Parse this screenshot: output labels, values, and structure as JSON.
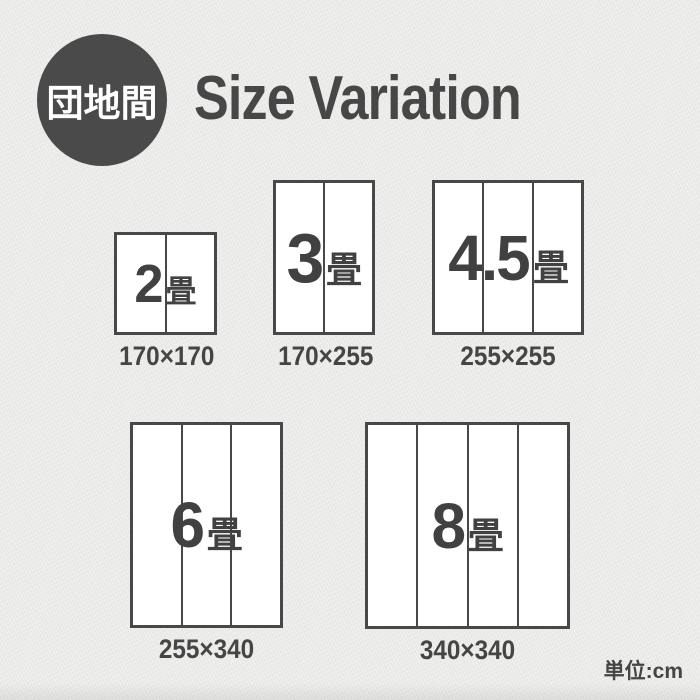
{
  "badge": {
    "label": "団地間"
  },
  "header": {
    "title": "Size Variation"
  },
  "footer": {
    "unit_label": "単位:cm"
  },
  "colors": {
    "ink": "#474747",
    "badge_background": "#4a4a4a",
    "mat_fill": "#ffffff",
    "page_background": "#eaeae8"
  },
  "sizes": [
    {
      "tatami_count": "2",
      "tatami_suffix": "畳",
      "dimensions": "170×170",
      "panels": 2
    },
    {
      "tatami_count": "3",
      "tatami_suffix": "畳",
      "dimensions": "170×255",
      "panels": 2
    },
    {
      "tatami_count": "4.5",
      "tatami_suffix": "畳",
      "dimensions": "255×255",
      "panels": 3
    },
    {
      "tatami_count": "6",
      "tatami_suffix": "畳",
      "dimensions": "255×340",
      "panels": 3
    },
    {
      "tatami_count": "8",
      "tatami_suffix": "畳",
      "dimensions": "340×340",
      "panels": 4
    }
  ]
}
